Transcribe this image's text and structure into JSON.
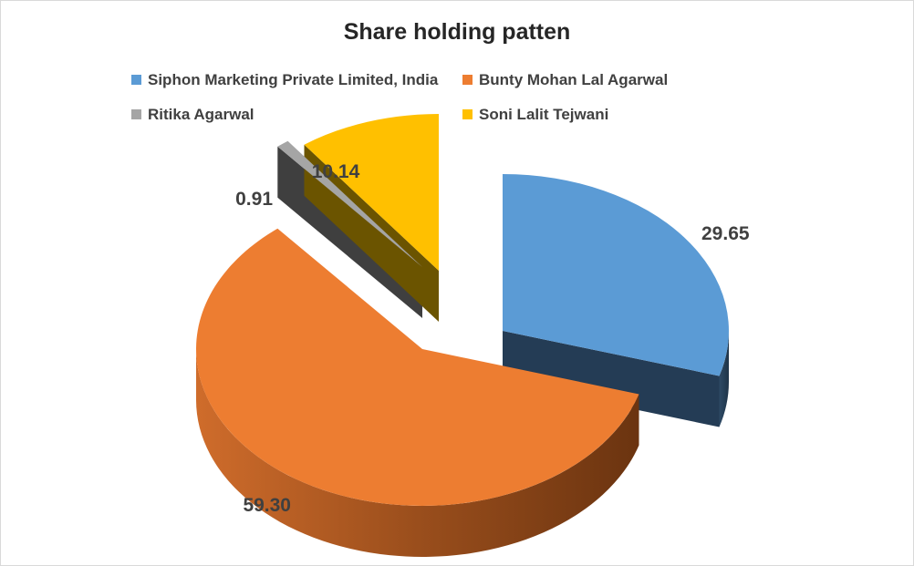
{
  "chart_data": {
    "type": "pie",
    "title": "Share holding patten",
    "categories": [
      "Siphon Marketing Private Limited, India",
      "Bunty Mohan Lal Agarwal",
      "Ritika Agarwal",
      "Soni Lalit Tejwani"
    ],
    "values": [
      29.65,
      59.3,
      0.91,
      10.14
    ],
    "labels": [
      "29.65",
      "59.30",
      "0.91",
      "10.14"
    ],
    "colors": [
      "#5b9bd5",
      "#ed7d31",
      "#a5a5a5",
      "#ffc000"
    ],
    "side_colors": [
      "#243c55",
      "#8a4612",
      "#3f3f3f",
      "#6b5400"
    ],
    "style": "3d-exploded",
    "legend_position": "top"
  }
}
